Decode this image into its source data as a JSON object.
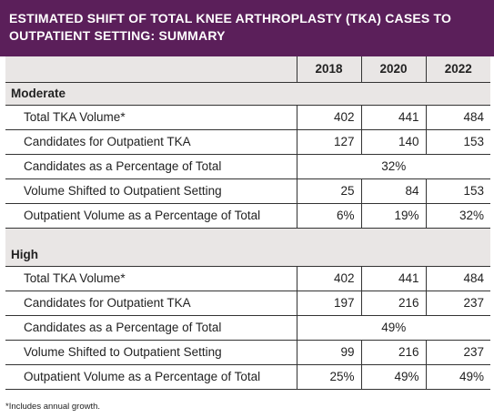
{
  "title_lines": [
    "ESTIMATED SHIFT OF TOTAL KNEE ARTHROPLASTY (TKA) CASES TO",
    "OUTPATIENT SETTING: SUMMARY"
  ],
  "years": [
    "2018",
    "2020",
    "2022"
  ],
  "moderate": {
    "heading": "Moderate",
    "rows": [
      {
        "label": "Total TKA Volume*",
        "values": [
          "402",
          "441",
          "484"
        ]
      },
      {
        "label": "Candidates for Outpatient TKA",
        "values": [
          "127",
          "140",
          "153"
        ]
      },
      {
        "label": "Candidates as a Percentage of Total",
        "span": "32%"
      },
      {
        "label": "Volume Shifted to Outpatient Setting",
        "values": [
          "25",
          "84",
          "153"
        ]
      },
      {
        "label": "Outpatient Volume as a Percentage of Total",
        "values": [
          "6%",
          "19%",
          "32%"
        ]
      }
    ]
  },
  "high": {
    "heading": "High",
    "rows": [
      {
        "label": "Total TKA Volume*",
        "values": [
          "402",
          "441",
          "484"
        ]
      },
      {
        "label": "Candidates for Outpatient TKA",
        "values": [
          "197",
          "216",
          "237"
        ]
      },
      {
        "label": "Candidates as a Percentage of Total",
        "span": "49%"
      },
      {
        "label": "Volume Shifted to Outpatient Setting",
        "values": [
          "99",
          "216",
          "237"
        ]
      },
      {
        "label": "Outpatient Volume as a Percentage of Total",
        "values": [
          "25%",
          "49%",
          "49%"
        ]
      }
    ]
  },
  "footnote": "*Includes annual growth."
}
